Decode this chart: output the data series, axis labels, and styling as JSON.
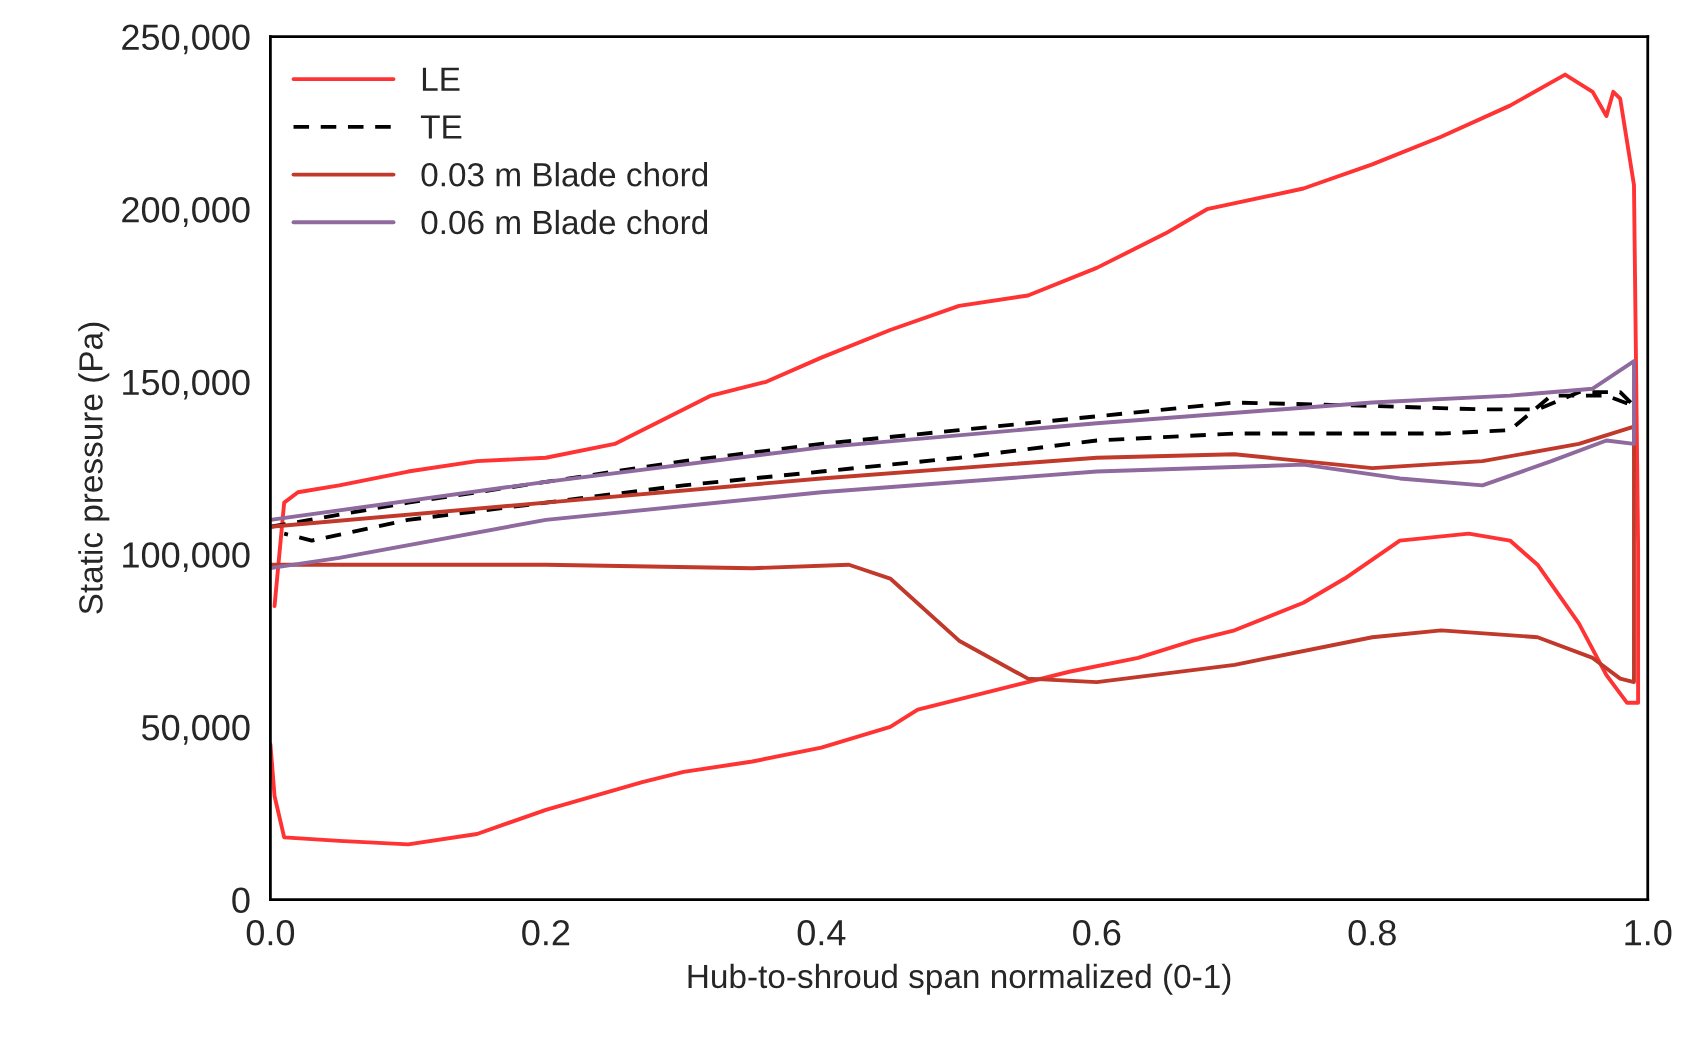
{
  "chart_data": {
    "type": "line",
    "xlabel": "Hub-to-shroud span normalized (0-1)",
    "ylabel": "Static pressure (Pa)",
    "xlim": [
      0,
      1
    ],
    "ylim": [
      0,
      250000
    ],
    "xticks": [
      {
        "value": 0,
        "label": "0.0"
      },
      {
        "value": 0.2,
        "label": "0.2"
      },
      {
        "value": 0.4,
        "label": "0.4"
      },
      {
        "value": 0.6,
        "label": "0.6"
      },
      {
        "value": 0.8,
        "label": "0.8"
      },
      {
        "value": 1,
        "label": "1.0"
      }
    ],
    "yticks": [
      {
        "value": 0,
        "label": "0"
      },
      {
        "value": 50000,
        "label": "50,000"
      },
      {
        "value": 100000,
        "label": "100,000"
      },
      {
        "value": 150000,
        "label": "150,000"
      },
      {
        "value": 200000,
        "label": "200,000"
      },
      {
        "value": 250000,
        "label": "250,000"
      }
    ],
    "grid": false,
    "legend": "top left",
    "marker": "none",
    "series": [
      {
        "name": "LE",
        "color": "#ff3333",
        "line_style": "solid",
        "x": [
          0.003,
          0.01,
          0.02,
          0.05,
          0.1,
          0.15,
          0.2,
          0.25,
          0.28,
          0.32,
          0.36,
          0.4,
          0.45,
          0.5,
          0.55,
          0.6,
          0.65,
          0.68,
          0.75,
          0.8,
          0.85,
          0.9,
          0.94,
          0.96,
          0.97,
          0.975,
          0.98,
          0.99,
          0.993,
          0.993,
          0.985,
          0.97,
          0.95,
          0.92,
          0.9,
          0.87,
          0.82,
          0.78,
          0.75,
          0.7,
          0.67,
          0.63,
          0.58,
          0.52,
          0.47,
          0.45,
          0.4,
          0.35,
          0.3,
          0.27,
          0.2,
          0.15,
          0.1,
          0.05,
          0.01,
          0.003,
          0.0
        ],
        "values": [
          85000,
          115000,
          118000,
          120000,
          124000,
          127000,
          128000,
          132000,
          138000,
          146000,
          150000,
          157000,
          165000,
          172000,
          175000,
          183000,
          193000,
          200000,
          206000,
          213000,
          221000,
          230000,
          239000,
          234000,
          227000,
          234000,
          232000,
          207000,
          102000,
          57000,
          57000,
          65000,
          80000,
          97000,
          104000,
          106000,
          104000,
          93000,
          86000,
          78000,
          75000,
          70000,
          66000,
          60000,
          55000,
          50000,
          44000,
          40000,
          37000,
          34000,
          26000,
          19000,
          16000,
          17000,
          18000,
          30000,
          45000
        ]
      },
      {
        "name": "TE",
        "color": "#000000",
        "line_style": "dashed",
        "x": [
          0.0,
          0.1,
          0.2,
          0.3,
          0.4,
          0.5,
          0.6,
          0.7,
          0.8,
          0.88,
          0.92,
          0.95,
          0.98,
          0.99,
          0.97,
          0.93,
          0.9,
          0.85,
          0.8,
          0.7,
          0.6,
          0.5,
          0.4,
          0.3,
          0.2,
          0.1,
          0.03,
          0.01
        ],
        "values": [
          108000,
          115000,
          121000,
          127000,
          132000,
          136000,
          140000,
          144000,
          143000,
          142000,
          142000,
          147000,
          147000,
          143000,
          146000,
          146000,
          136000,
          135000,
          135000,
          135000,
          133000,
          128000,
          124000,
          120000,
          115000,
          110000,
          104000,
          106000
        ]
      },
      {
        "name": "0.03 m Blade chord",
        "color": "#c0392b",
        "line_style": "solid",
        "x": [
          0.0,
          0.2,
          0.4,
          0.6,
          0.7,
          0.8,
          0.88,
          0.95,
          0.99,
          0.99,
          0.98,
          0.96,
          0.92,
          0.85,
          0.8,
          0.7,
          0.6,
          0.55,
          0.5,
          0.45,
          0.42,
          0.35,
          0.2,
          0.0
        ],
        "values": [
          108000,
          115000,
          122000,
          128000,
          129000,
          125000,
          127000,
          132000,
          137000,
          63000,
          64000,
          70000,
          76000,
          78000,
          76000,
          68000,
          63000,
          64000,
          75000,
          93000,
          97000,
          96000,
          97000,
          97000
        ]
      },
      {
        "name": "0.06 m Blade chord",
        "color": "#8e6a9e",
        "line_style": "solid",
        "x": [
          0.0,
          0.2,
          0.4,
          0.6,
          0.8,
          0.9,
          0.96,
          0.99,
          0.99,
          0.97,
          0.93,
          0.88,
          0.82,
          0.75,
          0.6,
          0.4,
          0.2,
          0.05,
          0.0
        ],
        "values": [
          110000,
          121000,
          131000,
          138000,
          144000,
          146000,
          148000,
          156000,
          132000,
          133000,
          127000,
          120000,
          122000,
          126000,
          124000,
          118000,
          110000,
          99000,
          96000
        ]
      }
    ]
  }
}
